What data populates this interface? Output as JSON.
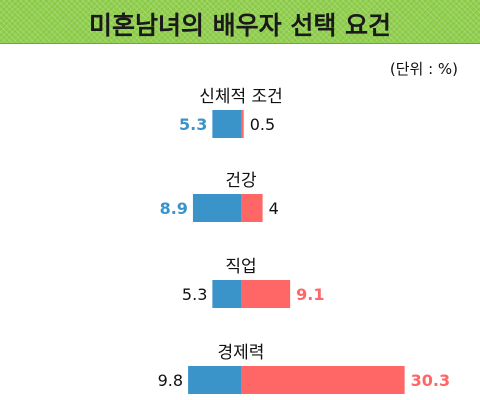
{
  "header": {
    "title": "미혼남녀의 배우자 선택 요건"
  },
  "unit_note": "(단위 : %)",
  "colors": {
    "banner": "#92d050",
    "male": "#3a93c9",
    "female": "#ff6666",
    "text": "#111111"
  },
  "chart_data": {
    "type": "bar",
    "orientation": "horizontal-diverging",
    "title": "미혼남녀의 배우자 선택 요건",
    "unit": "(단위 : %)",
    "categories": [
      "신체적 조건",
      "건강",
      "직업",
      "경제력"
    ],
    "series": [
      {
        "color": "#3a93c9",
        "values": [
          5.3,
          8.9,
          5.3,
          9.8
        ],
        "value_labels": [
          "5.3",
          "8.9",
          "5.3",
          "9.8"
        ],
        "highlighted": [
          true,
          true,
          false,
          false
        ]
      },
      {
        "color": "#ff6666",
        "values": [
          0.5,
          4,
          9.1,
          30.3
        ],
        "value_labels": [
          "0.5",
          "4",
          "9.1",
          "30.3"
        ],
        "highlighted": [
          false,
          false,
          true,
          true
        ]
      }
    ],
    "legend": "none",
    "grid": false
  }
}
